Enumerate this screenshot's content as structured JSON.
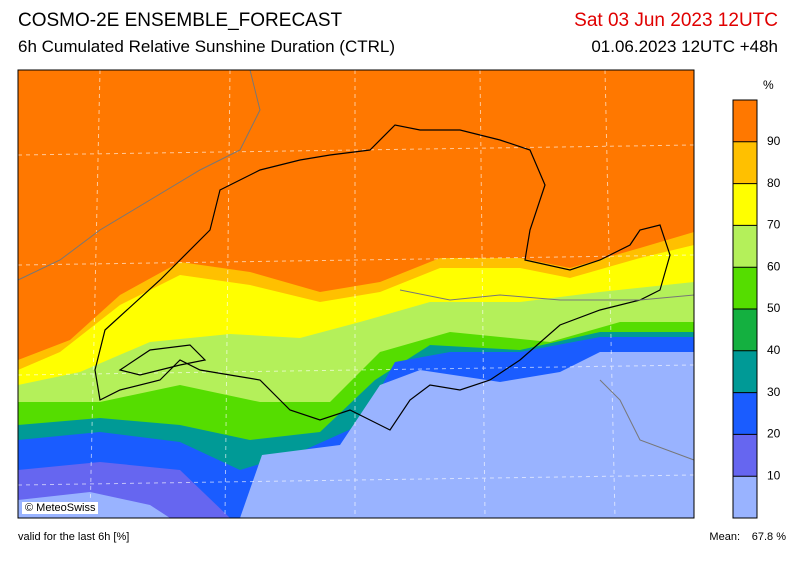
{
  "header": {
    "title": "COSMO-2E ENSEMBLE_FORECAST",
    "subtitle": "6h Cumulated Relative Sunshine Duration (CTRL)",
    "valid_time": "Sat 03 Jun 2023 12UTC",
    "run": "01.06.2023 12UTC +48h"
  },
  "colorbar": {
    "unit": "%",
    "ticks": [
      10,
      20,
      30,
      40,
      50,
      60,
      70,
      80,
      90
    ],
    "lim": [
      0,
      100
    ],
    "colors": [
      "#99b3ff",
      "#6666f0",
      "#1a5cff",
      "#009a96",
      "#14b040",
      "#55dd00",
      "#b4f05a",
      "#ffff00",
      "#ffc000",
      "#ff7800"
    ]
  },
  "map": {
    "copyright": "© MeteoSwiss"
  },
  "footer": {
    "note": "valid for the last 6h [%]",
    "mean_label": "Mean:",
    "mean_value": "67.8 %"
  }
}
